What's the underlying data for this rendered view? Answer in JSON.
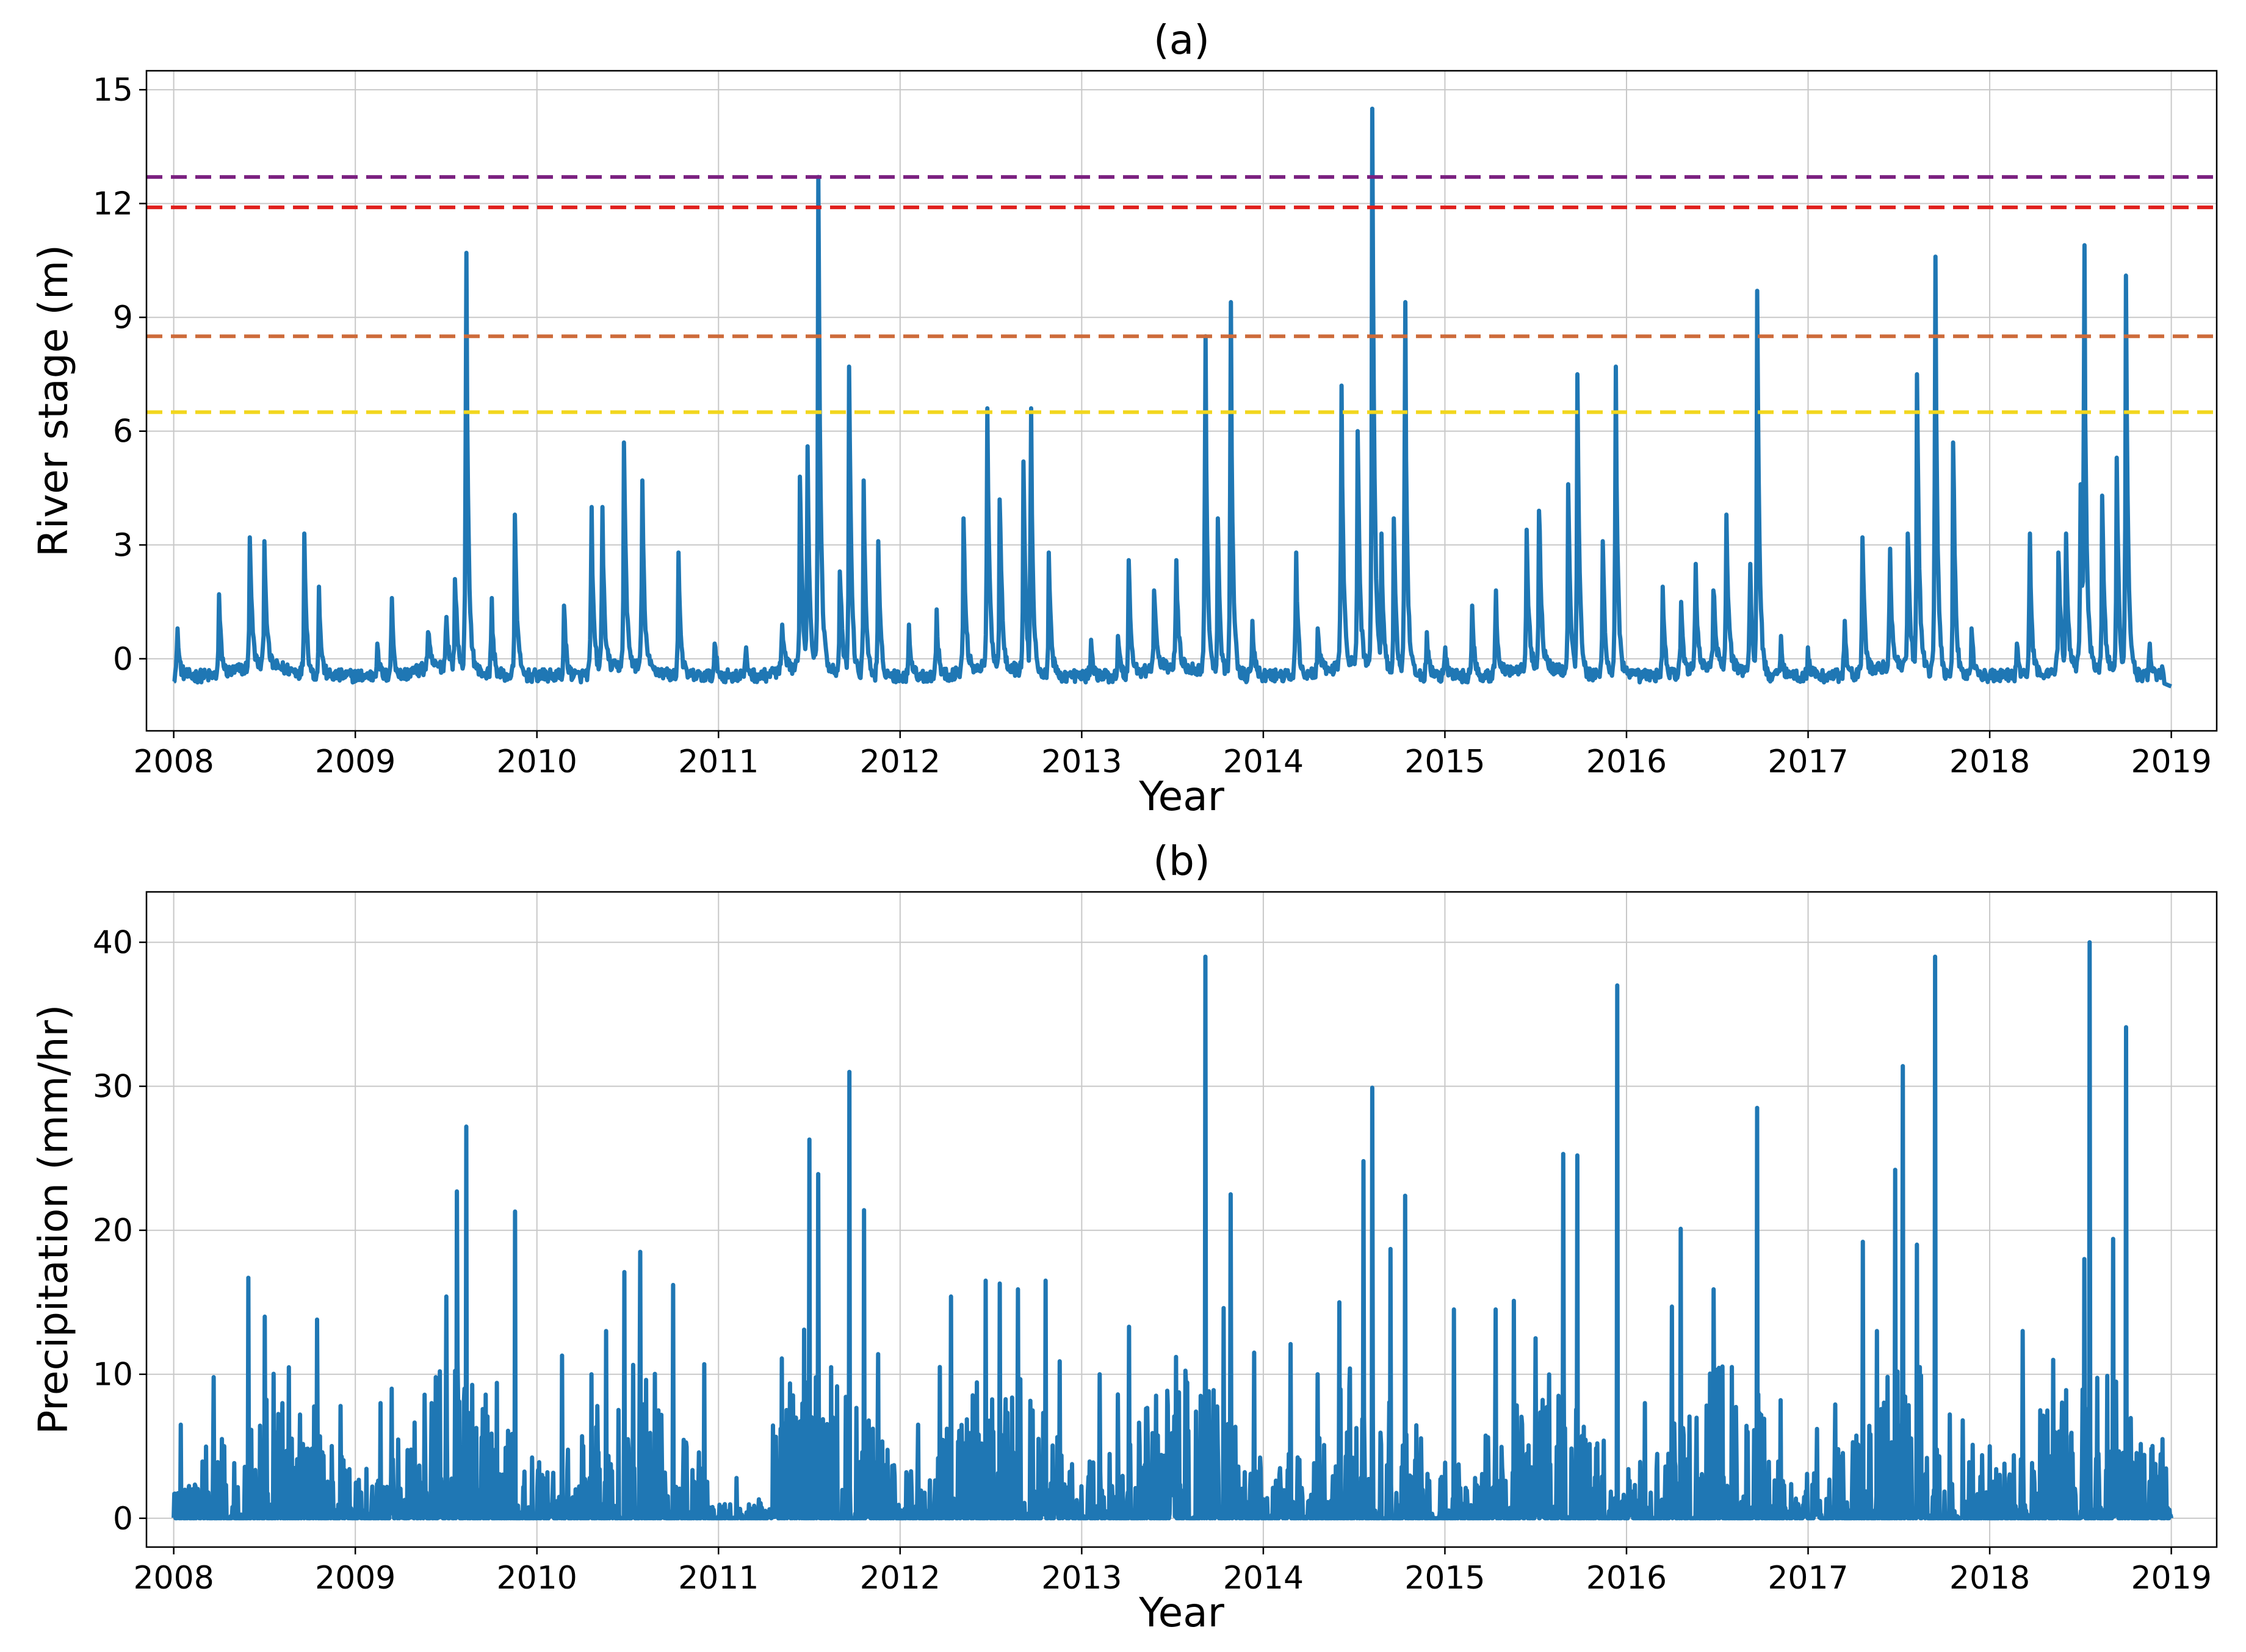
{
  "figure_name": "river-stage-and-precipitation-figure",
  "chart_data": [
    {
      "id": "panel-a",
      "type": "line",
      "title": "(a)",
      "xlabel": "Year",
      "ylabel": "River stage (m)",
      "xlim": [
        2007.85,
        2019.25
      ],
      "ylim": [
        -1.9,
        15.5
      ],
      "xticks": [
        2008,
        2009,
        2010,
        2011,
        2012,
        2013,
        2014,
        2015,
        2016,
        2017,
        2018,
        2019
      ],
      "yticks": [
        0,
        3,
        6,
        9,
        12,
        15
      ],
      "grid": true,
      "line_color": "#1f77b4",
      "thresholds": [
        {
          "value": 12.7,
          "color": "#7b2180"
        },
        {
          "value": 11.9,
          "color": "#e0201d"
        },
        {
          "value": 8.5,
          "color": "#cd6b3a"
        },
        {
          "value": 6.5,
          "color": "#f2d61e"
        }
      ],
      "peaks": [
        [
          2008.02,
          0.8
        ],
        [
          2008.25,
          1.7
        ],
        [
          2008.42,
          3.2
        ],
        [
          2008.5,
          3.1
        ],
        [
          2008.72,
          3.3
        ],
        [
          2008.8,
          1.9
        ],
        [
          2009.12,
          0.4
        ],
        [
          2009.2,
          1.6
        ],
        [
          2009.4,
          0.7
        ],
        [
          2009.5,
          1.1
        ],
        [
          2009.55,
          2.1
        ],
        [
          2009.61,
          10.7
        ],
        [
          2009.75,
          1.6
        ],
        [
          2009.88,
          3.8
        ],
        [
          2010.15,
          1.4
        ],
        [
          2010.3,
          4.0
        ],
        [
          2010.36,
          4.0
        ],
        [
          2010.48,
          5.7
        ],
        [
          2010.58,
          4.7
        ],
        [
          2010.78,
          2.8
        ],
        [
          2010.98,
          0.4
        ],
        [
          2011.15,
          0.3
        ],
        [
          2011.35,
          0.9
        ],
        [
          2011.45,
          4.8
        ],
        [
          2011.49,
          5.6
        ],
        [
          2011.55,
          12.7
        ],
        [
          2011.67,
          2.3
        ],
        [
          2011.72,
          7.7
        ],
        [
          2011.8,
          4.7
        ],
        [
          2011.88,
          3.1
        ],
        [
          2012.05,
          0.9
        ],
        [
          2012.2,
          1.3
        ],
        [
          2012.35,
          3.7
        ],
        [
          2012.48,
          6.6
        ],
        [
          2012.55,
          4.2
        ],
        [
          2012.68,
          5.2
        ],
        [
          2012.72,
          6.6
        ],
        [
          2012.82,
          2.8
        ],
        [
          2013.05,
          0.5
        ],
        [
          2013.2,
          0.6
        ],
        [
          2013.26,
          2.6
        ],
        [
          2013.4,
          1.8
        ],
        [
          2013.52,
          2.6
        ],
        [
          2013.68,
          8.5
        ],
        [
          2013.75,
          3.7
        ],
        [
          2013.82,
          9.4
        ],
        [
          2013.94,
          1.0
        ],
        [
          2014.18,
          2.8
        ],
        [
          2014.3,
          0.8
        ],
        [
          2014.43,
          7.2
        ],
        [
          2014.52,
          6.0
        ],
        [
          2014.6,
          14.5
        ],
        [
          2014.65,
          3.3
        ],
        [
          2014.72,
          3.7
        ],
        [
          2014.78,
          9.4
        ],
        [
          2014.9,
          0.7
        ],
        [
          2015.0,
          0.3
        ],
        [
          2015.15,
          1.4
        ],
        [
          2015.28,
          1.8
        ],
        [
          2015.45,
          3.4
        ],
        [
          2015.52,
          3.9
        ],
        [
          2015.68,
          4.6
        ],
        [
          2015.73,
          7.5
        ],
        [
          2015.87,
          3.1
        ],
        [
          2015.94,
          7.7
        ],
        [
          2016.2,
          1.9
        ],
        [
          2016.3,
          1.5
        ],
        [
          2016.38,
          2.5
        ],
        [
          2016.48,
          1.8
        ],
        [
          2016.55,
          3.8
        ],
        [
          2016.68,
          2.5
        ],
        [
          2016.72,
          9.7
        ],
        [
          2016.85,
          0.6
        ],
        [
          2017.0,
          0.3
        ],
        [
          2017.2,
          1.0
        ],
        [
          2017.3,
          3.2
        ],
        [
          2017.45,
          2.9
        ],
        [
          2017.55,
          3.3
        ],
        [
          2017.6,
          7.5
        ],
        [
          2017.7,
          10.6
        ],
        [
          2017.8,
          5.7
        ],
        [
          2017.9,
          0.8
        ],
        [
          2018.15,
          0.4
        ],
        [
          2018.22,
          3.3
        ],
        [
          2018.38,
          2.8
        ],
        [
          2018.42,
          3.3
        ],
        [
          2018.5,
          4.6
        ],
        [
          2018.52,
          10.9
        ],
        [
          2018.62,
          4.3
        ],
        [
          2018.7,
          5.3
        ],
        [
          2018.75,
          10.1
        ],
        [
          2018.88,
          0.4
        ],
        [
          2018.95,
          -0.2
        ]
      ]
    },
    {
      "id": "panel-b",
      "type": "line",
      "title": "(b)",
      "xlabel": "Year",
      "ylabel": "Precipitation (mm/hr)",
      "xlim": [
        2007.85,
        2019.25
      ],
      "ylim": [
        -2,
        43.5
      ],
      "xticks": [
        2008,
        2009,
        2010,
        2011,
        2012,
        2013,
        2014,
        2015,
        2016,
        2017,
        2018,
        2019
      ],
      "yticks": [
        0,
        10,
        20,
        30,
        40
      ],
      "grid": true,
      "line_color": "#1f77b4",
      "peaks": [
        [
          2008.04,
          6.5
        ],
        [
          2008.22,
          9.8
        ],
        [
          2008.41,
          16.7
        ],
        [
          2008.5,
          14.0
        ],
        [
          2008.6,
          8.0
        ],
        [
          2008.79,
          13.8
        ],
        [
          2008.92,
          7.8
        ],
        [
          2009.14,
          8.0
        ],
        [
          2009.2,
          9.0
        ],
        [
          2009.42,
          8.0
        ],
        [
          2009.5,
          15.4
        ],
        [
          2009.56,
          22.7
        ],
        [
          2009.61,
          27.2
        ],
        [
          2009.78,
          9.4
        ],
        [
          2009.88,
          21.3
        ],
        [
          2010.14,
          11.3
        ],
        [
          2010.3,
          10.0
        ],
        [
          2010.38,
          13.0
        ],
        [
          2010.48,
          17.1
        ],
        [
          2010.57,
          18.5
        ],
        [
          2010.75,
          16.2
        ],
        [
          2010.92,
          10.7
        ],
        [
          2011.1,
          2.8
        ],
        [
          2011.35,
          11.1
        ],
        [
          2011.47,
          13.1
        ],
        [
          2011.5,
          26.3
        ],
        [
          2011.55,
          23.9
        ],
        [
          2011.72,
          31.0
        ],
        [
          2011.8,
          21.4
        ],
        [
          2011.88,
          11.4
        ],
        [
          2012.1,
          6.5
        ],
        [
          2012.22,
          10.5
        ],
        [
          2012.28,
          15.4
        ],
        [
          2012.47,
          16.5
        ],
        [
          2012.55,
          16.3
        ],
        [
          2012.65,
          15.9
        ],
        [
          2012.8,
          16.5
        ],
        [
          2012.88,
          10.9
        ],
        [
          2013.1,
          10.0
        ],
        [
          2013.2,
          8.6
        ],
        [
          2013.26,
          13.3
        ],
        [
          2013.52,
          11.2
        ],
        [
          2013.68,
          39.0
        ],
        [
          2013.78,
          14.6
        ],
        [
          2013.82,
          22.5
        ],
        [
          2013.95,
          11.5
        ],
        [
          2014.15,
          12.1
        ],
        [
          2014.3,
          10.0
        ],
        [
          2014.42,
          15.0
        ],
        [
          2014.55,
          24.8
        ],
        [
          2014.6,
          29.9
        ],
        [
          2014.7,
          18.7
        ],
        [
          2014.78,
          22.4
        ],
        [
          2015.05,
          14.5
        ],
        [
          2015.28,
          14.5
        ],
        [
          2015.38,
          15.1
        ],
        [
          2015.5,
          12.5
        ],
        [
          2015.65,
          25.3
        ],
        [
          2015.73,
          25.2
        ],
        [
          2015.95,
          37.0
        ],
        [
          2016.1,
          8.0
        ],
        [
          2016.25,
          14.7
        ],
        [
          2016.3,
          20.1
        ],
        [
          2016.48,
          15.9
        ],
        [
          2016.58,
          10.5
        ],
        [
          2016.72,
          28.5
        ],
        [
          2016.85,
          8.2
        ],
        [
          2017.05,
          6.2
        ],
        [
          2017.15,
          7.9
        ],
        [
          2017.3,
          19.2
        ],
        [
          2017.38,
          13.0
        ],
        [
          2017.48,
          24.2
        ],
        [
          2017.52,
          31.4
        ],
        [
          2017.6,
          19.0
        ],
        [
          2017.7,
          39.0
        ],
        [
          2017.85,
          6.8
        ],
        [
          2018.0,
          5.0
        ],
        [
          2018.18,
          13.0
        ],
        [
          2018.28,
          7.5
        ],
        [
          2018.35,
          11.0
        ],
        [
          2018.42,
          8.9
        ],
        [
          2018.52,
          18.0
        ],
        [
          2018.55,
          40.0
        ],
        [
          2018.68,
          19.4
        ],
        [
          2018.75,
          34.1
        ],
        [
          2018.85,
          4.4
        ],
        [
          2018.95,
          5.5
        ]
      ]
    }
  ]
}
